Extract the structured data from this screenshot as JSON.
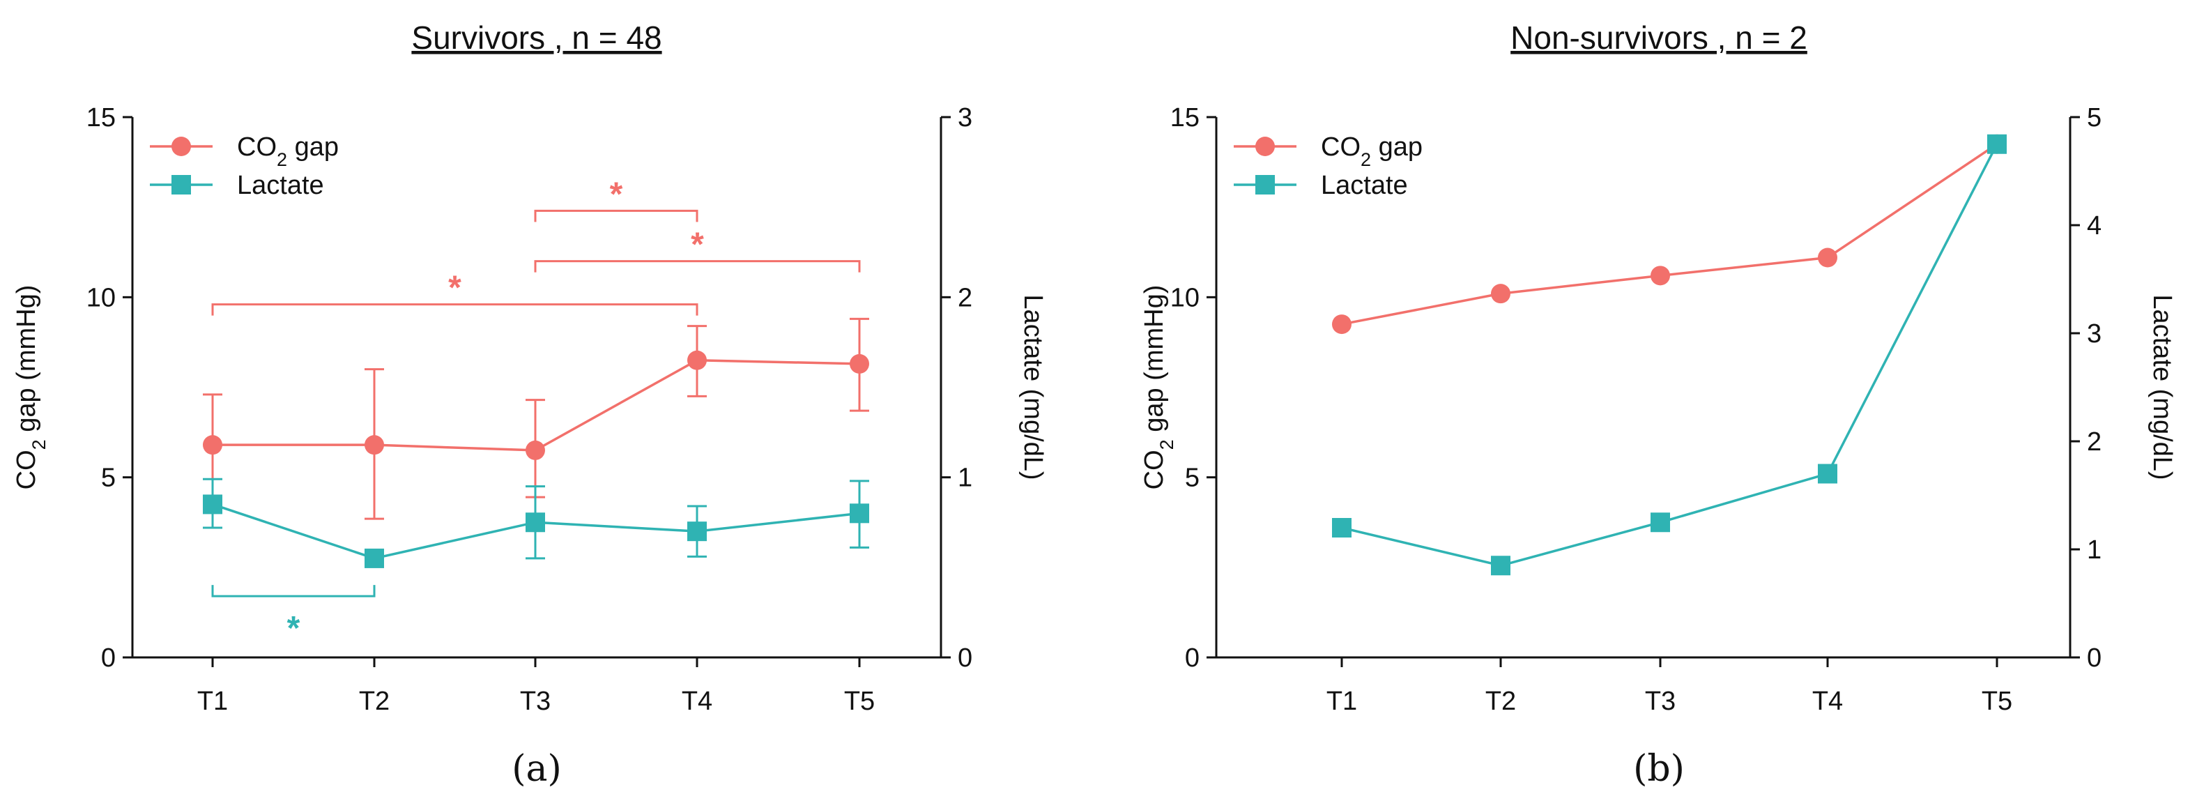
{
  "chart_data": [
    {
      "type": "line",
      "panel_label": "(a)",
      "title": "Survivors , n = 48",
      "categories": [
        "T1",
        "T2",
        "T3",
        "T4",
        "T5"
      ],
      "ylabel": "CO2 gap (mmHg)",
      "ylabel_parts": [
        "CO",
        "2",
        " gap (mmHg)"
      ],
      "y2label": "Lactate (mg/dL)",
      "ylim": [
        0,
        15
      ],
      "yticks": [
        0,
        5,
        10,
        15
      ],
      "y2lim": [
        0,
        3
      ],
      "y2ticks": [
        0,
        1,
        2,
        3
      ],
      "legend_position": "top-left",
      "series": [
        {
          "name": "CO2 gap",
          "name_parts": [
            "CO",
            "2",
            " gap"
          ],
          "axis": "left",
          "marker": "circle",
          "color": "#f2706b",
          "values": [
            5.9,
            5.9,
            5.75,
            8.25,
            8.15
          ],
          "err_low": [
            4.45,
            3.85,
            4.45,
            7.25,
            6.85
          ],
          "err_high": [
            7.3,
            8.0,
            7.15,
            9.2,
            9.4
          ]
        },
        {
          "name": "Lactate",
          "name_parts": [
            "Lactate",
            "",
            ""
          ],
          "axis": "right",
          "marker": "square",
          "color": "#2fb3b3",
          "values": [
            0.85,
            0.55,
            0.75,
            0.7,
            0.8
          ],
          "err_low": [
            0.72,
            0.55,
            0.55,
            0.56,
            0.61
          ],
          "err_high": [
            0.99,
            0.55,
            0.95,
            0.84,
            0.98
          ]
        }
      ],
      "annotations": [
        {
          "text": "*",
          "from": 2,
          "to": 3,
          "y": 12.4,
          "color": "#f2706b",
          "axis": "left",
          "dir": "down"
        },
        {
          "text": "*",
          "from": 2,
          "to": 4,
          "y": 11.0,
          "color": "#f2706b",
          "axis": "left",
          "dir": "down"
        },
        {
          "text": "*",
          "from": 0,
          "to": 3,
          "y": 9.8,
          "color": "#f2706b",
          "axis": "left",
          "dir": "down"
        },
        {
          "text": "*",
          "from": 0,
          "to": 1,
          "y": 1.7,
          "color": "#2fb3b3",
          "axis": "left",
          "dir": "up"
        }
      ]
    },
    {
      "type": "line",
      "panel_label": "(b)",
      "title": "Non-survivors , n = 2",
      "categories": [
        "T1",
        "T2",
        "T3",
        "T4",
        "T5"
      ],
      "ylabel": "CO2 gap (mmHg)",
      "ylabel_parts": [
        "CO",
        "2",
        " gap (mmHg)"
      ],
      "y2label": "Lactate (mg/dL)",
      "ylim": [
        0,
        15
      ],
      "yticks": [
        0,
        5,
        10,
        15
      ],
      "y2lim": [
        0,
        5
      ],
      "y2ticks": [
        0,
        1,
        2,
        3,
        4,
        5
      ],
      "legend_position": "top-left",
      "series": [
        {
          "name": "CO2 gap",
          "name_parts": [
            "CO",
            "2",
            " gap"
          ],
          "axis": "left",
          "marker": "circle",
          "color": "#f2706b",
          "values": [
            9.25,
            10.1,
            10.6,
            11.1,
            14.25
          ]
        },
        {
          "name": "Lactate",
          "name_parts": [
            "Lactate",
            "",
            ""
          ],
          "axis": "right",
          "marker": "square",
          "color": "#2fb3b3",
          "values": [
            1.2,
            0.85,
            1.25,
            1.7,
            4.75
          ]
        }
      ],
      "annotations": []
    }
  ]
}
